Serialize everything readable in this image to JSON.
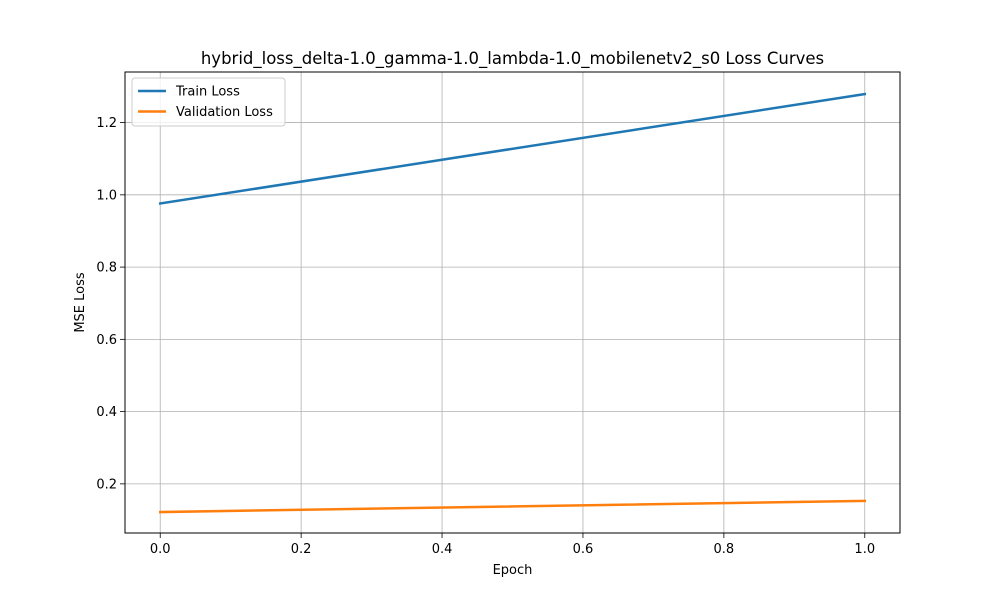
{
  "chart_data": {
    "type": "line",
    "title": "hybrid_loss_delta-1.0_gamma-1.0_lambda-1.0_mobilenetv2_s0 Loss Curves",
    "xlabel": "Epoch",
    "ylabel": "MSE Loss",
    "x": [
      0,
      1
    ],
    "series": [
      {
        "name": "Train Loss",
        "color": "#1f77b4",
        "values": [
          0.976,
          1.279
        ]
      },
      {
        "name": "Validation Loss",
        "color": "#ff7f0e",
        "values": [
          0.122,
          0.153
        ]
      }
    ],
    "xlim": [
      -0.05,
      1.05
    ],
    "ylim": [
      0.064,
      1.34
    ],
    "xticks": [
      0.0,
      0.2,
      0.4,
      0.6,
      0.8,
      1.0
    ],
    "xtick_labels": [
      "0.0",
      "0.2",
      "0.4",
      "0.6",
      "0.8",
      "1.0"
    ],
    "yticks": [
      0.2,
      0.4,
      0.6,
      0.8,
      1.0,
      1.2
    ],
    "ytick_labels": [
      "0.2",
      "0.4",
      "0.6",
      "0.8",
      "1.0",
      "1.2"
    ],
    "grid": true,
    "legend_position": "upper left"
  }
}
